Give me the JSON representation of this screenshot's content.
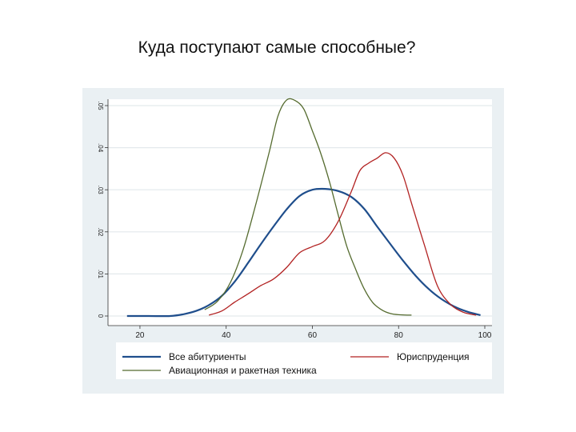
{
  "slide": {
    "title": "Куда поступают самые способные?"
  },
  "chart_data": {
    "type": "line",
    "xlim": [
      15,
      100
    ],
    "ylim": [
      0,
      0.05
    ],
    "xticks": [
      20,
      40,
      60,
      80,
      100
    ],
    "yticks": [
      0,
      0.01,
      0.02,
      0.03,
      0.04,
      0.05
    ],
    "ytick_labels": [
      "0",
      ".01",
      ".02",
      ".03",
      ".04",
      ".05"
    ],
    "grid": true,
    "legend_position": "bottom",
    "series": [
      {
        "name": "Все абитуриенты",
        "color": "#1f4e8c",
        "x": [
          17,
          22,
          27,
          30,
          33,
          36,
          39,
          42,
          45,
          48,
          51,
          54,
          57,
          60,
          63,
          66,
          69,
          72,
          75,
          78,
          81,
          84,
          87,
          90,
          93,
          96,
          99
        ],
        "y": [
          0,
          0,
          0,
          0.0004,
          0.0012,
          0.0026,
          0.0048,
          0.0082,
          0.0125,
          0.017,
          0.0213,
          0.0253,
          0.0285,
          0.03,
          0.0302,
          0.0297,
          0.0283,
          0.0255,
          0.0213,
          0.0172,
          0.0132,
          0.0095,
          0.0064,
          0.004,
          0.0022,
          0.001,
          0.0002
        ]
      },
      {
        "name": "Авиационная и ракетная техника",
        "color": "#556b2f",
        "x": [
          35,
          38,
          41,
          44,
          47,
          50,
          52,
          54,
          56,
          58,
          60,
          62,
          64,
          66,
          68,
          70,
          72,
          74,
          76,
          78,
          80,
          83
        ],
        "y": [
          0.0015,
          0.0035,
          0.008,
          0.016,
          0.027,
          0.039,
          0.0475,
          0.0513,
          0.0512,
          0.0492,
          0.044,
          0.0385,
          0.0318,
          0.024,
          0.0165,
          0.0112,
          0.0065,
          0.0032,
          0.0015,
          0.0006,
          0.0003,
          0.0002
        ]
      },
      {
        "name": "Юриспруденция",
        "color": "#b22222",
        "x": [
          36,
          39,
          42,
          45,
          48,
          51,
          54,
          57,
          60,
          63,
          66,
          69,
          71,
          73,
          75,
          77,
          79,
          81,
          83,
          86,
          89,
          92,
          95,
          98
        ],
        "y": [
          0.0002,
          0.0012,
          0.0033,
          0.0052,
          0.0072,
          0.0088,
          0.0115,
          0.015,
          0.0165,
          0.018,
          0.0225,
          0.0295,
          0.0345,
          0.0363,
          0.0375,
          0.0388,
          0.0375,
          0.0335,
          0.0268,
          0.0168,
          0.0072,
          0.0028,
          0.0009,
          0.0002
        ]
      }
    ]
  }
}
